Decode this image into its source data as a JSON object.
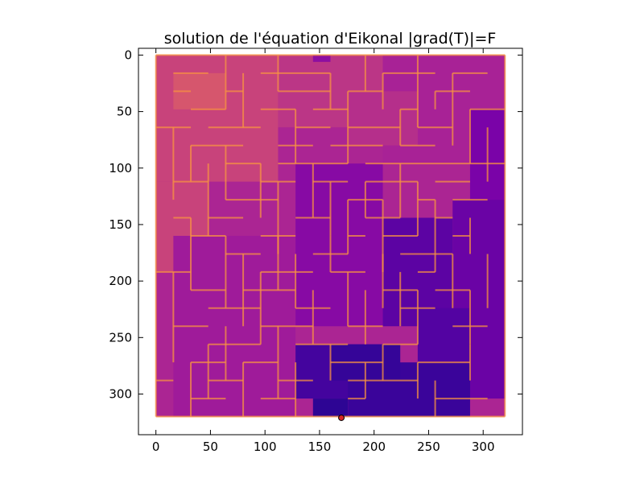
{
  "chart_data": {
    "type": "heatmap",
    "title": "solution de l'équation d'Eikonal |grad(T)|=F",
    "xlabel": "",
    "ylabel": "",
    "xlim": [
      -16,
      336
    ],
    "ylim": [
      336,
      -6
    ],
    "x_ticks": [
      0,
      50,
      100,
      150,
      200,
      250,
      300
    ],
    "y_ticks": [
      0,
      50,
      100,
      150,
      200,
      250,
      300
    ],
    "image_extent": {
      "x": [
        0,
        320
      ],
      "y": [
        0,
        320
      ]
    },
    "colormap": "plasma",
    "value_scale": "normalized travel time T (0 = source, 1 = farthest cell)",
    "grid": false,
    "cell_size": 16,
    "grid_cells": [
      20,
      20
    ],
    "source_point": {
      "x": 170,
      "y": 321,
      "color": "#d62728"
    },
    "regions": [
      {
        "x": [
          0,
          320
        ],
        "y": [
          0,
          320
        ],
        "value": 0.62
      },
      {
        "x": [
          0,
          112
        ],
        "y": [
          0,
          112
        ],
        "value": 0.8
      },
      {
        "x": [
          0,
          48
        ],
        "y": [
          112,
          192
        ],
        "value": 0.8
      },
      {
        "x": [
          16,
          64
        ],
        "y": [
          16,
          48
        ],
        "value": 0.92
      },
      {
        "x": [
          112,
          208
        ],
        "y": [
          0,
          64
        ],
        "value": 0.72
      },
      {
        "x": [
          144,
          160
        ],
        "y": [
          0,
          6
        ],
        "value": 0.45
      },
      {
        "x": [
          208,
          320
        ],
        "y": [
          0,
          96
        ],
        "value": 0.6
      },
      {
        "x": [
          176,
          240
        ],
        "y": [
          32,
          80
        ],
        "value": 0.68
      },
      {
        "x": [
          16,
          128
        ],
        "y": [
          160,
          320
        ],
        "value": 0.55
      },
      {
        "x": [
          128,
          208
        ],
        "y": [
          96,
          240
        ],
        "value": 0.42
      },
      {
        "x": [
          288,
          320
        ],
        "y": [
          48,
          128
        ],
        "value": 0.35
      },
      {
        "x": [
          272,
          320
        ],
        "y": [
          128,
          304
        ],
        "value": 0.28
      },
      {
        "x": [
          208,
          272
        ],
        "y": [
          144,
          240
        ],
        "value": 0.22
      },
      {
        "x": [
          240,
          288
        ],
        "y": [
          224,
          304
        ],
        "value": 0.18
      },
      {
        "x": [
          128,
          208
        ],
        "y": [
          256,
          304
        ],
        "value": 0.12
      },
      {
        "x": [
          144,
          176
        ],
        "y": [
          304,
          320
        ],
        "value": 0.03
      },
      {
        "x": [
          176,
          288
        ],
        "y": [
          272,
          320
        ],
        "value": 0.08
      },
      {
        "x": [
          160,
          224
        ],
        "y": [
          256,
          288
        ],
        "value": 0.06
      }
    ],
    "wall_color_value": 0.93,
    "walls_h": [
      [
        0,
        320,
        0
      ],
      [
        0,
        320,
        320
      ],
      [
        16,
        48,
        16
      ],
      [
        96,
        160,
        16
      ],
      [
        208,
        256,
        16
      ],
      [
        272,
        304,
        16
      ],
      [
        16,
        32,
        32
      ],
      [
        64,
        80,
        32
      ],
      [
        112,
        160,
        32
      ],
      [
        176,
        208,
        32
      ],
      [
        256,
        288,
        32
      ],
      [
        32,
        64,
        48
      ],
      [
        96,
        128,
        48
      ],
      [
        144,
        176,
        48
      ],
      [
        224,
        240,
        48
      ],
      [
        288,
        320,
        48
      ],
      [
        0,
        32,
        64
      ],
      [
        48,
        96,
        64
      ],
      [
        128,
        160,
        64
      ],
      [
        176,
        224,
        64
      ],
      [
        240,
        272,
        64
      ],
      [
        32,
        80,
        80
      ],
      [
        112,
        144,
        80
      ],
      [
        160,
        208,
        80
      ],
      [
        224,
        256,
        80
      ],
      [
        64,
        96,
        96
      ],
      [
        112,
        176,
        96
      ],
      [
        192,
        320,
        96
      ],
      [
        16,
        48,
        112
      ],
      [
        96,
        128,
        112
      ],
      [
        144,
        176,
        112
      ],
      [
        192,
        240,
        112
      ],
      [
        256,
        288,
        112
      ],
      [
        64,
        112,
        128
      ],
      [
        176,
        208,
        128
      ],
      [
        240,
        256,
        128
      ],
      [
        272,
        304,
        128
      ],
      [
        16,
        32,
        144
      ],
      [
        48,
        80,
        144
      ],
      [
        128,
        160,
        144
      ],
      [
        192,
        224,
        144
      ],
      [
        256,
        272,
        144
      ],
      [
        32,
        64,
        160
      ],
      [
        96,
        128,
        160
      ],
      [
        176,
        192,
        160
      ],
      [
        208,
        240,
        160
      ],
      [
        272,
        288,
        160
      ],
      [
        64,
        96,
        176
      ],
      [
        144,
        176,
        176
      ],
      [
        224,
        272,
        176
      ],
      [
        0,
        32,
        192
      ],
      [
        96,
        144,
        192
      ],
      [
        160,
        192,
        192
      ],
      [
        240,
        256,
        192
      ],
      [
        32,
        64,
        208
      ],
      [
        80,
        128,
        208
      ],
      [
        208,
        240,
        208
      ],
      [
        256,
        288,
        208
      ],
      [
        48,
        96,
        224
      ],
      [
        128,
        160,
        224
      ],
      [
        224,
        256,
        224
      ],
      [
        16,
        48,
        240
      ],
      [
        96,
        144,
        240
      ],
      [
        176,
        208,
        240
      ],
      [
        272,
        304,
        240
      ],
      [
        48,
        96,
        256
      ],
      [
        128,
        176,
        256
      ],
      [
        208,
        240,
        256
      ],
      [
        32,
        64,
        272
      ],
      [
        80,
        112,
        272
      ],
      [
        160,
        208,
        272
      ],
      [
        240,
        288,
        272
      ],
      [
        0,
        16,
        288
      ],
      [
        48,
        80,
        288
      ],
      [
        112,
        144,
        288
      ],
      [
        176,
        240,
        288
      ],
      [
        32,
        64,
        304
      ],
      [
        96,
        128,
        304
      ],
      [
        176,
        192,
        304
      ],
      [
        256,
        304,
        304
      ]
    ],
    "walls_v": [
      [
        0,
        0,
        320
      ],
      [
        320,
        0,
        320
      ],
      [
        64,
        0,
        48
      ],
      [
        80,
        16,
        64
      ],
      [
        112,
        0,
        32
      ],
      [
        128,
        48,
        96
      ],
      [
        160,
        16,
        48
      ],
      [
        176,
        32,
        96
      ],
      [
        192,
        0,
        32
      ],
      [
        208,
        16,
        48
      ],
      [
        224,
        48,
        80
      ],
      [
        240,
        0,
        64
      ],
      [
        256,
        32,
        48
      ],
      [
        272,
        16,
        80
      ],
      [
        288,
        48,
        96
      ],
      [
        304,
        64,
        112
      ],
      [
        16,
        64,
        128
      ],
      [
        32,
        80,
        112
      ],
      [
        48,
        96,
        160
      ],
      [
        64,
        80,
        128
      ],
      [
        96,
        96,
        144
      ],
      [
        112,
        112,
        176
      ],
      [
        144,
        96,
        144
      ],
      [
        160,
        112,
        160
      ],
      [
        176,
        128,
        176
      ],
      [
        192,
        112,
        144
      ],
      [
        208,
        128,
        192
      ],
      [
        224,
        96,
        144
      ],
      [
        240,
        112,
        160
      ],
      [
        256,
        128,
        192
      ],
      [
        288,
        144,
        176
      ],
      [
        16,
        192,
        272
      ],
      [
        32,
        144,
        208
      ],
      [
        64,
        160,
        224
      ],
      [
        80,
        176,
        240
      ],
      [
        96,
        192,
        256
      ],
      [
        112,
        160,
        208
      ],
      [
        128,
        176,
        224
      ],
      [
        144,
        208,
        256
      ],
      [
        160,
        160,
        192
      ],
      [
        176,
        192,
        240
      ],
      [
        192,
        208,
        256
      ],
      [
        208,
        176,
        224
      ],
      [
        224,
        192,
        240
      ],
      [
        240,
        208,
        256
      ],
      [
        272,
        176,
        224
      ],
      [
        288,
        208,
        256
      ],
      [
        304,
        176,
        224
      ],
      [
        32,
        272,
        320
      ],
      [
        48,
        256,
        304
      ],
      [
        64,
        240,
        288
      ],
      [
        80,
        272,
        320
      ],
      [
        112,
        240,
        304
      ],
      [
        128,
        272,
        320
      ],
      [
        160,
        256,
        288
      ],
      [
        192,
        272,
        304
      ],
      [
        208,
        256,
        288
      ],
      [
        240,
        272,
        304
      ],
      [
        256,
        288,
        320
      ],
      [
        288,
        256,
        288
      ]
    ]
  }
}
